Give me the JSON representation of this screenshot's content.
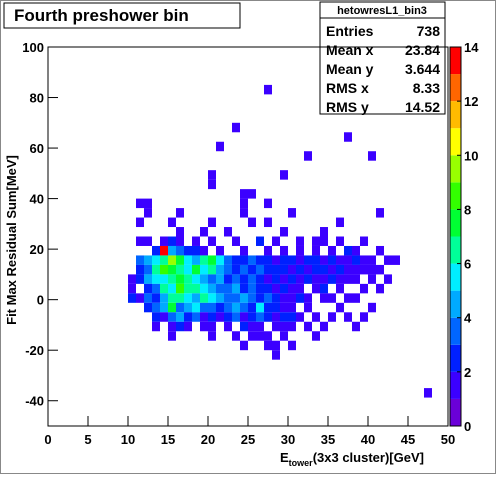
{
  "chart_data": {
    "type": "heatmap",
    "title": "Fourth preshower bin",
    "xlabel": [
      "E",
      "tower",
      "(3x3 cluster)[GeV]"
    ],
    "ylabel": "Fit Max Residual Sum[MeV]",
    "stats_title": "hetowresL1_bin3",
    "stats": [
      {
        "label": "Entries",
        "value": 738
      },
      {
        "label": "Mean x",
        "value": 23.84
      },
      {
        "label": "Mean y",
        "value": 3.644
      },
      {
        "label": "RMS x",
        "value": 8.33
      },
      {
        "label": "RMS y",
        "value": 14.52
      }
    ],
    "xlim": [
      0,
      50
    ],
    "ylim": [
      -50,
      100
    ],
    "xticks": [
      0,
      5,
      10,
      15,
      20,
      25,
      30,
      35,
      40,
      45,
      50
    ],
    "yticks": [
      -40,
      -20,
      0,
      20,
      40,
      60,
      80,
      100
    ],
    "xbin_edges": [
      0,
      1,
      2,
      3,
      4,
      5,
      6,
      7,
      8,
      9,
      10,
      11,
      12,
      13,
      14,
      15,
      16,
      17,
      18,
      19,
      20,
      21,
      22,
      23,
      24,
      25,
      26,
      27,
      28,
      29,
      30,
      31,
      32,
      33,
      34,
      35,
      36,
      37,
      38,
      39,
      40,
      41,
      42,
      43,
      44,
      45,
      46,
      47,
      48,
      49,
      50
    ],
    "ybin_edges": [
      -50,
      -46.25,
      -42.5,
      -38.75,
      -35,
      -31.25,
      -27.5,
      -23.75,
      -20,
      -16.25,
      -12.5,
      -8.75,
      -5,
      -1.25,
      2.5,
      6.25,
      10,
      13.75,
      17.5,
      21.25,
      25,
      28.75,
      32.5,
      36.25,
      40,
      43.75,
      47.5,
      51.25,
      55,
      58.75,
      62.5,
      66.25,
      70,
      73.75,
      77.5,
      81.25,
      85,
      88.75,
      92.5,
      96.25,
      100
    ],
    "zlim": [
      0,
      14
    ],
    "zticks": [
      0,
      2,
      4,
      6,
      8,
      10,
      12,
      14
    ],
    "palette": [
      "#6a00d8",
      "#3b00ff",
      "#0020ff",
      "#0066ff",
      "#00aaff",
      "#00eeff",
      "#00ff99",
      "#00ff33",
      "#33ff00",
      "#99ff00",
      "#ffff00",
      "#ffbb00",
      "#ff6600",
      "#ff0000"
    ],
    "rows": [
      {
        "y": 81.25,
        "x": [
          27
        ],
        "values": [
          1
        ]
      },
      {
        "y": 66.25,
        "x": [
          23
        ],
        "values": [
          1
        ]
      },
      {
        "y": 62.5,
        "x": [
          37
        ],
        "values": [
          1
        ]
      },
      {
        "y": 58.75,
        "x": [
          21
        ],
        "values": [
          1
        ]
      },
      {
        "y": 55,
        "x": [
          32,
          40
        ],
        "values": [
          1,
          1
        ]
      },
      {
        "y": 47.5,
        "x": [
          20,
          29
        ],
        "values": [
          1,
          1
        ]
      },
      {
        "y": 43.75,
        "x": [
          20
        ],
        "values": [
          1
        ]
      },
      {
        "y": 40,
        "x": [
          24,
          25
        ],
        "values": [
          1,
          1
        ]
      },
      {
        "y": 36.25,
        "x": [
          11,
          12,
          24,
          27
        ],
        "values": [
          1,
          1,
          1,
          1
        ]
      },
      {
        "y": 32.5,
        "x": [
          12,
          16,
          24,
          30,
          41
        ],
        "values": [
          1,
          1,
          1,
          1,
          1
        ]
      },
      {
        "y": 28.75,
        "x": [
          11,
          15,
          20,
          25,
          27,
          36
        ],
        "values": [
          1,
          1,
          1,
          1,
          1,
          1
        ]
      },
      {
        "y": 25,
        "x": [
          16,
          19,
          22,
          29,
          34
        ],
        "values": [
          1,
          1,
          1,
          1,
          1
        ]
      },
      {
        "y": 21.25,
        "x": [
          11,
          12,
          14,
          15,
          16,
          18,
          20,
          23,
          26,
          28,
          31,
          33,
          34,
          36,
          39
        ],
        "values": [
          1,
          1,
          1,
          2,
          1,
          1,
          1,
          1,
          2,
          1,
          1,
          1,
          1,
          1,
          1
        ]
      },
      {
        "y": 17.5,
        "x": [
          13,
          14,
          15,
          16,
          17,
          18,
          19,
          21,
          24,
          27,
          29,
          31,
          33,
          35,
          37,
          38,
          41
        ],
        "values": [
          2,
          14,
          4,
          3,
          2,
          2,
          1,
          1,
          1,
          1,
          1,
          1,
          1,
          1,
          2,
          1,
          1
        ]
      },
      {
        "y": 13.75,
        "x": [
          11,
          12,
          13,
          14,
          15,
          16,
          17,
          18,
          19,
          20,
          21,
          22,
          23,
          24,
          25,
          26,
          27,
          28,
          29,
          30,
          31,
          32,
          33,
          34,
          35,
          36,
          37,
          38,
          39,
          40,
          42,
          43
        ],
        "values": [
          3,
          4,
          5,
          6,
          9,
          7,
          5,
          4,
          6,
          7,
          5,
          3,
          2,
          2,
          3,
          2,
          2,
          1,
          2,
          2,
          1,
          2,
          2,
          1,
          2,
          1,
          1,
          2,
          1,
          1,
          1,
          1
        ]
      },
      {
        "y": 10,
        "x": [
          11,
          12,
          13,
          14,
          15,
          16,
          17,
          18,
          19,
          20,
          21,
          22,
          23,
          24,
          25,
          26,
          27,
          28,
          29,
          30,
          31,
          32,
          33,
          34,
          35,
          36,
          37,
          38,
          39,
          40,
          41
        ],
        "values": [
          2,
          3,
          6,
          8,
          7,
          6,
          5,
          7,
          5,
          6,
          4,
          3,
          2,
          3,
          2,
          3,
          2,
          2,
          2,
          1,
          2,
          1,
          2,
          2,
          1,
          2,
          1,
          1,
          1,
          1,
          1
        ]
      },
      {
        "y": 6.25,
        "x": [
          10,
          11,
          12,
          13,
          14,
          15,
          16,
          17,
          18,
          19,
          20,
          21,
          22,
          23,
          24,
          25,
          26,
          27,
          28,
          29,
          30,
          31,
          32,
          33,
          34,
          35,
          36,
          37,
          38,
          40,
          42
        ],
        "values": [
          1,
          2,
          4,
          5,
          5,
          6,
          7,
          6,
          5,
          4,
          3,
          4,
          2,
          3,
          2,
          3,
          2,
          1,
          2,
          1,
          2,
          1,
          2,
          1,
          1,
          2,
          1,
          1,
          1,
          1,
          1
        ]
      },
      {
        "y": 2.5,
        "x": [
          10,
          12,
          13,
          14,
          15,
          16,
          17,
          18,
          19,
          20,
          21,
          22,
          23,
          24,
          25,
          26,
          27,
          28,
          29,
          30,
          31,
          33,
          34,
          36,
          39,
          41
        ],
        "values": [
          1,
          2,
          3,
          6,
          5,
          8,
          6,
          6,
          5,
          4,
          3,
          3,
          4,
          2,
          3,
          2,
          2,
          1,
          2,
          1,
          1,
          1,
          2,
          1,
          1,
          1
        ]
      },
      {
        "y": -1.25,
        "x": [
          10,
          11,
          12,
          13,
          14,
          15,
          16,
          17,
          18,
          19,
          20,
          21,
          22,
          23,
          24,
          25,
          26,
          27,
          28,
          29,
          30,
          31,
          32,
          34,
          35,
          37,
          38
        ],
        "values": [
          2,
          1,
          3,
          2,
          4,
          6,
          6,
          5,
          4,
          6,
          5,
          4,
          3,
          3,
          4,
          3,
          2,
          3,
          2,
          1,
          1,
          2,
          1,
          1,
          1,
          1,
          1
        ]
      },
      {
        "y": -5,
        "x": [
          12,
          13,
          14,
          15,
          16,
          17,
          18,
          19,
          20,
          21,
          22,
          23,
          24,
          25,
          26,
          27,
          28,
          29,
          30,
          32,
          36,
          40
        ],
        "values": [
          2,
          3,
          4,
          7,
          3,
          4,
          5,
          3,
          3,
          2,
          3,
          4,
          3,
          2,
          5,
          2,
          2,
          1,
          1,
          1,
          1,
          1
        ]
      },
      {
        "y": -8.75,
        "x": [
          13,
          14,
          15,
          16,
          17,
          18,
          19,
          20,
          21,
          22,
          23,
          24,
          25,
          26,
          27,
          28,
          29,
          30,
          31,
          33,
          35,
          37,
          39
        ],
        "values": [
          2,
          1,
          3,
          4,
          2,
          3,
          1,
          2,
          1,
          2,
          3,
          1,
          2,
          3,
          2,
          1,
          2,
          2,
          1,
          1,
          1,
          1,
          1
        ]
      },
      {
        "y": -12.5,
        "x": [
          13,
          15,
          16,
          17,
          19,
          20,
          22,
          24,
          25,
          26,
          28,
          29,
          30,
          32,
          34,
          38
        ],
        "values": [
          1,
          1,
          2,
          1,
          1,
          1,
          1,
          2,
          1,
          1,
          1,
          1,
          1,
          1,
          1,
          1
        ]
      },
      {
        "y": -16.25,
        "x": [
          15,
          20,
          23,
          25,
          26,
          27,
          29,
          33
        ],
        "values": [
          1,
          1,
          1,
          1,
          1,
          1,
          1,
          1
        ]
      },
      {
        "y": -20,
        "x": [
          24,
          27,
          28,
          30
        ],
        "values": [
          1,
          1,
          1,
          1
        ]
      },
      {
        "y": -23.75,
        "x": [
          28
        ],
        "values": [
          1
        ]
      },
      {
        "y": -38.75,
        "x": [
          47
        ],
        "values": [
          1
        ]
      }
    ]
  }
}
